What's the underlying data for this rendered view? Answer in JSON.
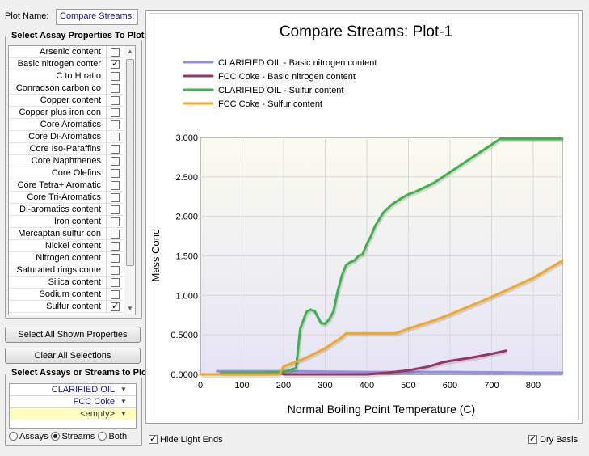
{
  "plot_name": {
    "label": "Plot Name:",
    "value": "Compare Streams:"
  },
  "properties": {
    "title": "Select Assay Properties To Plot",
    "items": [
      {
        "label": "Arsenic content",
        "checked": false
      },
      {
        "label": "Basic nitrogen conter",
        "checked": true
      },
      {
        "label": "C to H ratio",
        "checked": false
      },
      {
        "label": "Conradson carbon co",
        "checked": false
      },
      {
        "label": "Copper content",
        "checked": false
      },
      {
        "label": "Copper plus iron con",
        "checked": false
      },
      {
        "label": "Core Aromatics",
        "checked": false
      },
      {
        "label": "Core Di-Aromatics",
        "checked": false
      },
      {
        "label": "Core Iso-Paraffins",
        "checked": false
      },
      {
        "label": "Core Naphthenes",
        "checked": false
      },
      {
        "label": "Core Olefins",
        "checked": false
      },
      {
        "label": "Core Tetra+ Aromatic",
        "checked": false
      },
      {
        "label": "Core Tri-Aromatics",
        "checked": false
      },
      {
        "label": "Di-aromatics content",
        "checked": false
      },
      {
        "label": "Iron content",
        "checked": false
      },
      {
        "label": "Mercaptan sulfur con",
        "checked": false
      },
      {
        "label": "Nickel content",
        "checked": false
      },
      {
        "label": "Nitrogen content",
        "checked": false
      },
      {
        "label": "Saturated rings conte",
        "checked": false
      },
      {
        "label": "Silica content",
        "checked": false
      },
      {
        "label": "Sodium content",
        "checked": false
      },
      {
        "label": "Sulfur content",
        "checked": true
      }
    ]
  },
  "buttons": {
    "select_all": "Select All Shown Properties",
    "clear_all": "Clear All Selections"
  },
  "assays": {
    "title": "Select Assays or Streams to Plot",
    "streams": [
      "CLARIFIED OIL",
      "FCC Coke",
      "<empty>"
    ],
    "radio": [
      {
        "label": "Assays",
        "selected": false
      },
      {
        "label": "Streams",
        "selected": true
      },
      {
        "label": "Both",
        "selected": false
      }
    ]
  },
  "bottom": {
    "hide_light_ends": {
      "label": "Hide Light Ends",
      "checked": true
    },
    "dry_basis": {
      "label": "Dry Basis",
      "checked": true
    }
  },
  "chart_data": {
    "type": "line",
    "title": "Compare Streams: Plot-1",
    "xlabel": "Normal Boiling Point Temperature (C)",
    "ylabel": "Mass Conc",
    "xlim": [
      0,
      870
    ],
    "ylim": [
      0,
      3.0
    ],
    "xticks": [
      0,
      100,
      200,
      300,
      400,
      500,
      600,
      700,
      800
    ],
    "yticks": [
      0,
      0.5,
      1.0,
      1.5,
      2.0,
      2.5,
      3.0
    ],
    "ytick_labels": [
      "0.0000",
      "0.5000",
      "1.000",
      "1.500",
      "2.000",
      "2.500",
      "3.000"
    ],
    "grid": true,
    "legend_position": "top-left",
    "series": [
      {
        "name": "CLARIFIED OIL - Basic nitrogen content",
        "color": "#9090e8",
        "x": [
          40,
          200,
          400,
          600,
          800,
          870
        ],
        "y": [
          0.04,
          0.04,
          0.03,
          0.03,
          0.02,
          0.02
        ]
      },
      {
        "name": "FCC Coke - Basic nitrogen content",
        "color": "#993366",
        "x": [
          200,
          400,
          450,
          500,
          550,
          580,
          600,
          650,
          700,
          735
        ],
        "y": [
          0.0,
          0.0,
          0.02,
          0.05,
          0.1,
          0.15,
          0.17,
          0.21,
          0.26,
          0.3
        ]
      },
      {
        "name": "CLARIFIED OIL - Sulfur content",
        "color": "#3cb44b",
        "x": [
          50,
          150,
          200,
          230,
          240,
          255,
          265,
          275,
          290,
          300,
          310,
          320,
          330,
          340,
          350,
          360,
          370,
          380,
          390,
          400,
          410,
          420,
          440,
          460,
          480,
          500,
          520,
          560,
          600,
          640,
          680,
          720,
          800,
          870
        ],
        "y": [
          0.02,
          0.02,
          0.03,
          0.08,
          0.58,
          0.79,
          0.82,
          0.8,
          0.65,
          0.64,
          0.7,
          0.8,
          1.05,
          1.25,
          1.38,
          1.42,
          1.44,
          1.5,
          1.52,
          1.65,
          1.75,
          1.88,
          2.05,
          2.15,
          2.22,
          2.28,
          2.32,
          2.42,
          2.56,
          2.7,
          2.84,
          2.98,
          2.98,
          2.98
        ]
      },
      {
        "name": "FCC Coke - Sulfur content",
        "color": "#f5a623",
        "x": [
          0,
          190,
          200,
          250,
          300,
          340,
          350,
          400,
          470,
          500,
          560,
          600,
          700,
          800,
          870
        ],
        "y": [
          0.0,
          0.0,
          0.1,
          0.2,
          0.33,
          0.47,
          0.52,
          0.52,
          0.52,
          0.58,
          0.68,
          0.76,
          0.98,
          1.22,
          1.44
        ]
      }
    ]
  }
}
